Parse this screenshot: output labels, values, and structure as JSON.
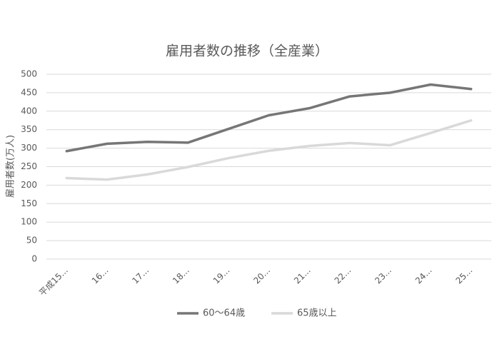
{
  "chart_data": {
    "type": "line",
    "title": "雇用者数の推移（全産業）",
    "y_label": "雇用者数(万人)",
    "categories": [
      "平成15...",
      "16...",
      "17...",
      "18...",
      "19...",
      "20...",
      "21...",
      "22...",
      "23...",
      "24...",
      "25..."
    ],
    "series": [
      {
        "name": "60～64歳",
        "color": "#767676",
        "values": [
          292,
          312,
          317,
          315,
          352,
          389,
          408,
          440,
          450,
          472,
          460
        ]
      },
      {
        "name": "65歳以上",
        "color": "#d9d9d9",
        "values": [
          219,
          215,
          229,
          249,
          273,
          293,
          306,
          314,
          308,
          341,
          375
        ]
      }
    ],
    "ylim": [
      0,
      500
    ],
    "yticks": [
      0,
      50,
      100,
      150,
      200,
      250,
      300,
      350,
      400,
      450,
      500
    ],
    "grid": true,
    "legend": "bottom"
  }
}
